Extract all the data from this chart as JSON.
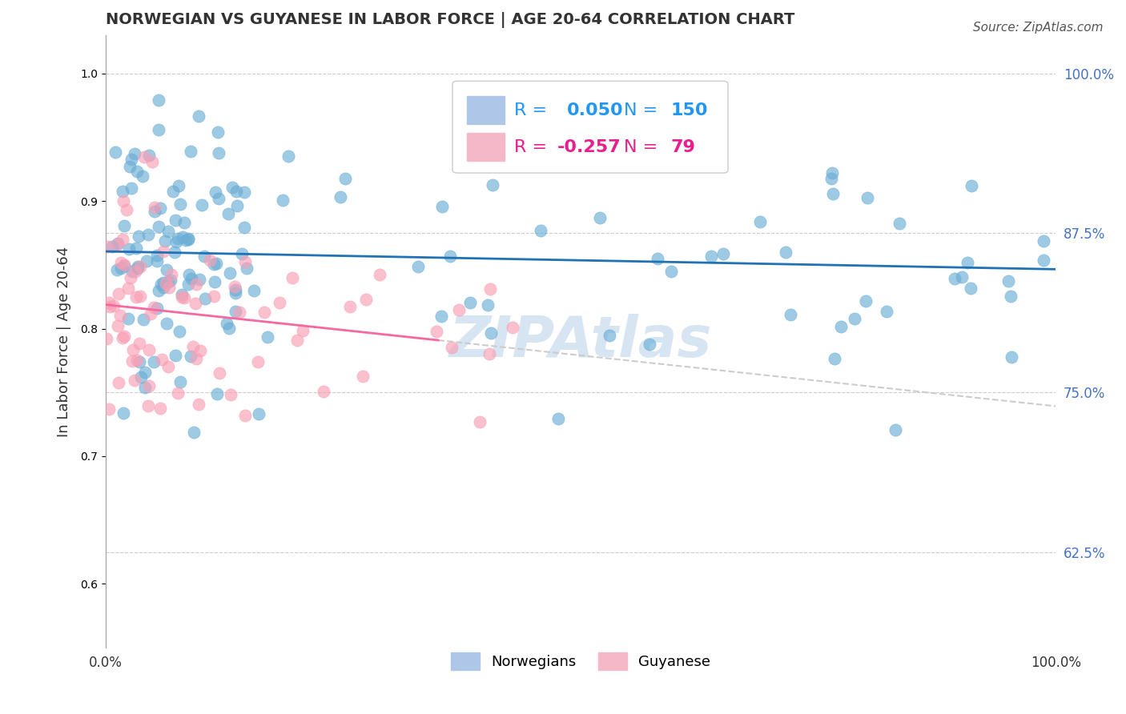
{
  "title": "NORWEGIAN VS GUYANESE IN LABOR FORCE | AGE 20-64 CORRELATION CHART",
  "source_text": "Source: ZipAtlas.com",
  "ylabel": "In Labor Force | Age 20-64",
  "xlabel": "",
  "xlim": [
    0.0,
    1.0
  ],
  "ylim": [
    0.55,
    1.03
  ],
  "yticks": [
    0.625,
    0.75,
    0.875,
    1.0
  ],
  "ytick_labels": [
    "62.5%",
    "75.0%",
    "87.5%",
    "100.0%"
  ],
  "xtick_labels": [
    "0.0%",
    "100.0%"
  ],
  "xticks": [
    0.0,
    1.0
  ],
  "norwegian_R": 0.05,
  "norwegian_N": 150,
  "guyanese_R": -0.257,
  "guyanese_N": 79,
  "blue_color": "#6baed6",
  "pink_color": "#fa9fb5",
  "blue_line_color": "#2171b5",
  "pink_line_color": "#f768a1",
  "watermark_color": "#c6dbef",
  "background_color": "#ffffff",
  "grid_color": "#cccccc",
  "title_color": "#333333",
  "legend_R_color": "#2196F3",
  "legend_N_color": "#2196F3",
  "legend_fontsize": 16
}
